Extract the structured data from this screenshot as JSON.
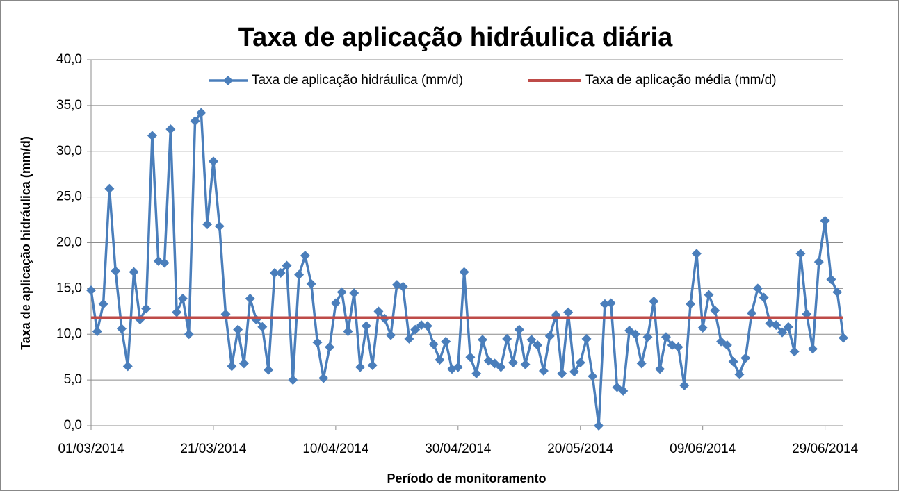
{
  "chart_data": {
    "type": "line",
    "title": "Taxa de aplicação hidráulica diária",
    "x_label": "Período de monitoramento",
    "y_label": "Taxa de aplicação hidráulica (mm/d)",
    "x": [
      "2014-03-01",
      "2014-03-02",
      "2014-03-03",
      "2014-03-04",
      "2014-03-05",
      "2014-03-06",
      "2014-03-07",
      "2014-03-08",
      "2014-03-09",
      "2014-03-10",
      "2014-03-11",
      "2014-03-12",
      "2014-03-13",
      "2014-03-14",
      "2014-03-15",
      "2014-03-16",
      "2014-03-17",
      "2014-03-18",
      "2014-03-19",
      "2014-03-20",
      "2014-03-21",
      "2014-03-22",
      "2014-03-23",
      "2014-03-24",
      "2014-03-25",
      "2014-03-26",
      "2014-03-27",
      "2014-03-28",
      "2014-03-29",
      "2014-03-30",
      "2014-03-31",
      "2014-04-01",
      "2014-04-02",
      "2014-04-03",
      "2014-04-04",
      "2014-04-05",
      "2014-04-06",
      "2014-04-07",
      "2014-04-08",
      "2014-04-09",
      "2014-04-10",
      "2014-04-11",
      "2014-04-12",
      "2014-04-13",
      "2014-04-14",
      "2014-04-15",
      "2014-04-16",
      "2014-04-17",
      "2014-04-18",
      "2014-04-19",
      "2014-04-20",
      "2014-04-21",
      "2014-04-22",
      "2014-04-23",
      "2014-04-24",
      "2014-04-25",
      "2014-04-26",
      "2014-04-27",
      "2014-04-28",
      "2014-04-29",
      "2014-04-30",
      "2014-05-01",
      "2014-05-02",
      "2014-05-03",
      "2014-05-04",
      "2014-05-05",
      "2014-05-06",
      "2014-05-07",
      "2014-05-08",
      "2014-05-09",
      "2014-05-10",
      "2014-05-11",
      "2014-05-12",
      "2014-05-13",
      "2014-05-14",
      "2014-05-15",
      "2014-05-16",
      "2014-05-17",
      "2014-05-18",
      "2014-05-19",
      "2014-05-20",
      "2014-05-21",
      "2014-05-22",
      "2014-05-23",
      "2014-05-24",
      "2014-05-25",
      "2014-05-26",
      "2014-05-27",
      "2014-05-28",
      "2014-05-29",
      "2014-05-30",
      "2014-05-31",
      "2014-06-01",
      "2014-06-02",
      "2014-06-03",
      "2014-06-04",
      "2014-06-05",
      "2014-06-06",
      "2014-06-07",
      "2014-06-08",
      "2014-06-09",
      "2014-06-10",
      "2014-06-11",
      "2014-06-12",
      "2014-06-13",
      "2014-06-14",
      "2014-06-15",
      "2014-06-16",
      "2014-06-17",
      "2014-06-18",
      "2014-06-19",
      "2014-06-20",
      "2014-06-21",
      "2014-06-22",
      "2014-06-23",
      "2014-06-24",
      "2014-06-25",
      "2014-06-26",
      "2014-06-27",
      "2014-06-28",
      "2014-06-29",
      "2014-06-30",
      "2014-07-01",
      "2014-07-02"
    ],
    "series": [
      {
        "name": "Taxa de aplicação hidráulica (mm/d)",
        "color": "#4a7ebb",
        "values": [
          14.8,
          10.3,
          13.3,
          25.9,
          16.9,
          10.6,
          6.5,
          16.8,
          11.6,
          12.8,
          31.7,
          18.0,
          17.8,
          32.4,
          12.4,
          13.9,
          10.0,
          33.3,
          34.2,
          22.0,
          28.9,
          21.8,
          12.2,
          6.5,
          10.5,
          6.8,
          13.9,
          11.6,
          10.8,
          6.1,
          16.7,
          16.7,
          17.5,
          5.0,
          16.5,
          18.6,
          15.5,
          9.1,
          5.2,
          8.6,
          13.4,
          14.6,
          10.3,
          14.5,
          6.4,
          10.9,
          6.6,
          12.5,
          11.7,
          9.9,
          15.4,
          15.2,
          9.5,
          10.5,
          11.0,
          10.9,
          8.9,
          7.2,
          9.2,
          6.2,
          6.4,
          16.8,
          7.5,
          5.7,
          9.4,
          7.1,
          6.8,
          6.4,
          9.5,
          6.9,
          10.5,
          6.7,
          9.4,
          8.8,
          6.0,
          9.8,
          12.1,
          5.7,
          12.4,
          5.9,
          6.9,
          9.5,
          5.4,
          0.0,
          13.3,
          13.4,
          4.2,
          3.8,
          10.4,
          10.0,
          6.8,
          9.7,
          13.6,
          6.2,
          9.7,
          8.8,
          8.6,
          4.4,
          13.3,
          18.8,
          10.7,
          14.3,
          12.6,
          9.2,
          8.8,
          7.0,
          5.6,
          7.4,
          12.3,
          15.0,
          14.0,
          11.2,
          11.0,
          10.2,
          10.8,
          8.1,
          18.8,
          12.2,
          8.4,
          17.9,
          22.4,
          16.0,
          14.6,
          9.6
        ]
      }
    ],
    "reference_line": {
      "name": "Taxa de aplicação média (mm/d)",
      "color": "#be4b48",
      "value": 11.8
    },
    "xlim": [
      "2014-03-01",
      "2014-07-02"
    ],
    "xticks": [
      {
        "value": "2014-03-01",
        "label": "01/03/2014"
      },
      {
        "value": "2014-03-21",
        "label": "21/03/2014"
      },
      {
        "value": "2014-04-10",
        "label": "10/04/2014"
      },
      {
        "value": "2014-04-30",
        "label": "30/04/2014"
      },
      {
        "value": "2014-05-20",
        "label": "20/05/2014"
      },
      {
        "value": "2014-06-09",
        "label": "09/06/2014"
      },
      {
        "value": "2014-06-29",
        "label": "29/06/2014"
      }
    ],
    "ylim": [
      0,
      40
    ],
    "yticks": [
      {
        "value": 0,
        "label": "0,0"
      },
      {
        "value": 5,
        "label": "5,0"
      },
      {
        "value": 10,
        "label": "10,0"
      },
      {
        "value": 15,
        "label": "15,0"
      },
      {
        "value": 20,
        "label": "20,0"
      },
      {
        "value": 25,
        "label": "25,0"
      },
      {
        "value": 30,
        "label": "30,0"
      },
      {
        "value": 35,
        "label": "35,0"
      },
      {
        "value": 40,
        "label": "40,0"
      }
    ],
    "grid": true,
    "legend": "top"
  }
}
